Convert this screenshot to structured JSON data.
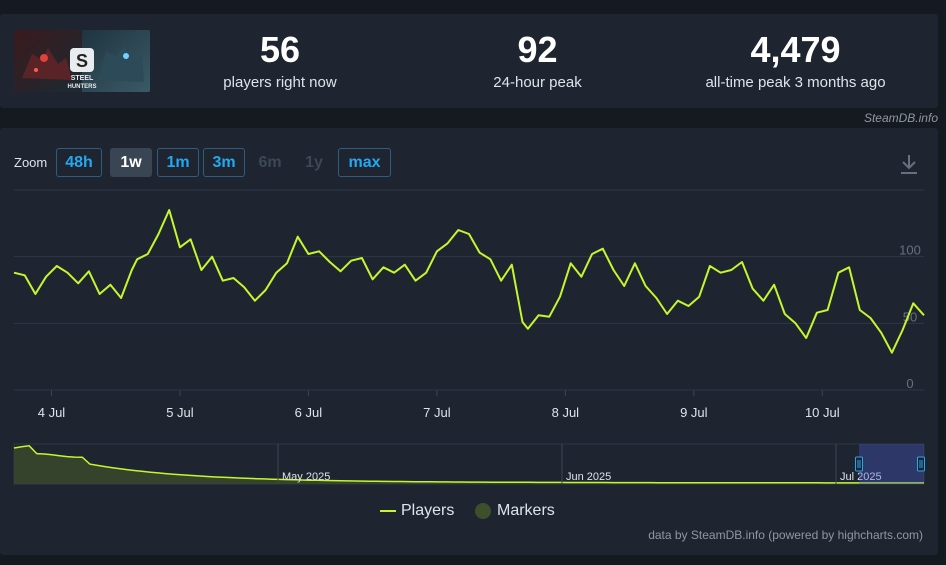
{
  "stats": {
    "current": {
      "value": "56",
      "label": "players right now"
    },
    "peak24": {
      "value": "92",
      "label": "24-hour peak"
    },
    "alltime": {
      "value": "4,479",
      "label": "all-time peak 3 months ago"
    }
  },
  "game_title": "STEEL HUNTERS",
  "attribution_top": "SteamDB.info",
  "zoom": {
    "label": "Zoom",
    "buttons": [
      {
        "label": "48h",
        "state": "normal"
      },
      {
        "label": "1w",
        "state": "active"
      },
      {
        "label": "1m",
        "state": "normal"
      },
      {
        "label": "3m",
        "state": "normal"
      },
      {
        "label": "6m",
        "state": "disabled"
      },
      {
        "label": "1y",
        "state": "disabled"
      },
      {
        "label": "max",
        "state": "normal"
      }
    ]
  },
  "legend": {
    "players": "Players",
    "markers": "Markers"
  },
  "attribution_bottom": "data by SteamDB.info (powered by highcharts.com)",
  "colors": {
    "series": "#c4f72d",
    "accent": "#23a8f2",
    "panel": "#1e2530",
    "background": "#151a21"
  },
  "chart_data": {
    "type": "line",
    "title": "",
    "ylabel": "",
    "ylim": [
      0,
      150
    ],
    "y_ticks": [
      0,
      50,
      100
    ],
    "x_range": [
      "2025-07-03T17:00",
      "2025-07-10T19:00"
    ],
    "x_ticks": [
      "4 Jul",
      "5 Jul",
      "6 Jul",
      "7 Jul",
      "8 Jul",
      "9 Jul",
      "10 Jul"
    ],
    "grid": true,
    "legend_placement": "bottom-center",
    "series": [
      {
        "name": "Players",
        "points": [
          [
            "2025-07-03T17:00",
            88
          ],
          [
            "2025-07-03T19:00",
            86
          ],
          [
            "2025-07-03T21:00",
            72
          ],
          [
            "2025-07-03T23:00",
            85
          ],
          [
            "2025-07-04T01:00",
            93
          ],
          [
            "2025-07-04T03:00",
            88
          ],
          [
            "2025-07-04T05:00",
            80
          ],
          [
            "2025-07-04T07:00",
            89
          ],
          [
            "2025-07-04T09:00",
            72
          ],
          [
            "2025-07-04T11:00",
            79
          ],
          [
            "2025-07-04T13:00",
            69
          ],
          [
            "2025-07-04T15:00",
            90
          ],
          [
            "2025-07-04T16:00",
            98
          ],
          [
            "2025-07-04T18:00",
            102
          ],
          [
            "2025-07-04T20:00",
            117
          ],
          [
            "2025-07-04T22:00",
            135
          ],
          [
            "2025-07-05T00:00",
            107
          ],
          [
            "2025-07-05T02:00",
            113
          ],
          [
            "2025-07-05T04:00",
            90
          ],
          [
            "2025-07-05T06:00",
            100
          ],
          [
            "2025-07-05T08:00",
            82
          ],
          [
            "2025-07-05T10:00",
            84
          ],
          [
            "2025-07-05T12:00",
            77
          ],
          [
            "2025-07-05T14:00",
            67
          ],
          [
            "2025-07-05T16:00",
            75
          ],
          [
            "2025-07-05T18:00",
            88
          ],
          [
            "2025-07-05T20:00",
            95
          ],
          [
            "2025-07-05T22:00",
            115
          ],
          [
            "2025-07-06T00:00",
            102
          ],
          [
            "2025-07-06T02:00",
            104
          ],
          [
            "2025-07-06T04:00",
            96
          ],
          [
            "2025-07-06T06:00",
            89
          ],
          [
            "2025-07-06T08:00",
            97
          ],
          [
            "2025-07-06T10:00",
            99
          ],
          [
            "2025-07-06T12:00",
            83
          ],
          [
            "2025-07-06T14:00",
            92
          ],
          [
            "2025-07-06T16:00",
            88
          ],
          [
            "2025-07-06T18:00",
            94
          ],
          [
            "2025-07-06T20:00",
            82
          ],
          [
            "2025-07-06T22:00",
            88
          ],
          [
            "2025-07-07T00:00",
            104
          ],
          [
            "2025-07-07T02:00",
            110
          ],
          [
            "2025-07-07T04:00",
            120
          ],
          [
            "2025-07-07T06:00",
            117
          ],
          [
            "2025-07-07T08:00",
            103
          ],
          [
            "2025-07-07T10:00",
            98
          ],
          [
            "2025-07-07T12:00",
            82
          ],
          [
            "2025-07-07T14:00",
            94
          ],
          [
            "2025-07-07T16:00",
            51
          ],
          [
            "2025-07-07T17:00",
            46
          ],
          [
            "2025-07-07T19:00",
            56
          ],
          [
            "2025-07-07T21:00",
            55
          ],
          [
            "2025-07-07T23:00",
            70
          ],
          [
            "2025-07-08T01:00",
            95
          ],
          [
            "2025-07-08T03:00",
            85
          ],
          [
            "2025-07-08T05:00",
            102
          ],
          [
            "2025-07-08T07:00",
            106
          ],
          [
            "2025-07-08T09:00",
            90
          ],
          [
            "2025-07-08T11:00",
            78
          ],
          [
            "2025-07-08T13:00",
            95
          ],
          [
            "2025-07-08T15:00",
            78
          ],
          [
            "2025-07-08T17:00",
            69
          ],
          [
            "2025-07-08T19:00",
            57
          ],
          [
            "2025-07-08T21:00",
            67
          ],
          [
            "2025-07-08T23:00",
            63
          ],
          [
            "2025-07-09T01:00",
            70
          ],
          [
            "2025-07-09T03:00",
            93
          ],
          [
            "2025-07-09T05:00",
            88
          ],
          [
            "2025-07-09T07:00",
            90
          ],
          [
            "2025-07-09T09:00",
            96
          ],
          [
            "2025-07-09T11:00",
            76
          ],
          [
            "2025-07-09T13:00",
            67
          ],
          [
            "2025-07-09T15:00",
            79
          ],
          [
            "2025-07-09T17:00",
            57
          ],
          [
            "2025-07-09T19:00",
            50
          ],
          [
            "2025-07-09T21:00",
            39
          ],
          [
            "2025-07-09T23:00",
            58
          ],
          [
            "2025-07-10T01:00",
            60
          ],
          [
            "2025-07-10T03:00",
            88
          ],
          [
            "2025-07-10T05:00",
            92
          ],
          [
            "2025-07-10T07:00",
            60
          ],
          [
            "2025-07-10T09:00",
            54
          ],
          [
            "2025-07-10T11:00",
            43
          ],
          [
            "2025-07-10T13:00",
            28
          ],
          [
            "2025-07-10T15:00",
            45
          ],
          [
            "2025-07-10T17:00",
            65
          ],
          [
            "2025-07-10T19:00",
            56
          ]
        ]
      }
    ]
  },
  "navigator": {
    "labels": [
      "May 2025",
      "Jun 2025",
      "Jul 2025"
    ]
  }
}
